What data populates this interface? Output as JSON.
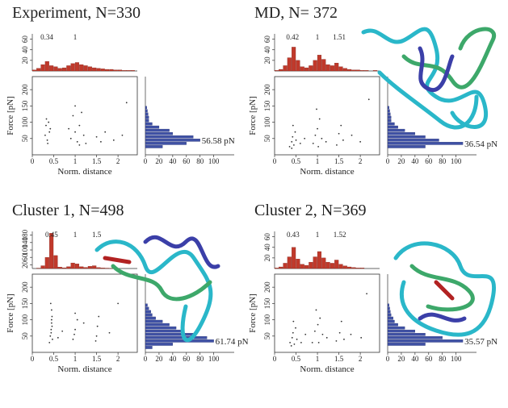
{
  "chart_data": [
    {
      "type": "scatter",
      "title": "Experiment, N=330",
      "x_label": "Norm. distance",
      "y_label": "Force [pN]",
      "xlim": [
        0,
        2.45
      ],
      "ylim": [
        0,
        240
      ],
      "xticks": [
        0,
        0.5,
        1,
        1.5,
        2
      ],
      "yticks": [
        50,
        100,
        150,
        200
      ],
      "color": "#333333",
      "x": [
        0.3,
        0.32,
        0.35,
        0.38,
        0.4,
        0.33,
        0.36,
        0.42,
        0.9,
        0.95,
        1.0,
        1.05,
        1.1,
        1.15,
        1.2,
        1.25,
        1.0,
        1.1,
        0.85,
        1.5,
        1.6,
        1.7,
        1.9,
        2.1,
        2.2
      ],
      "y": [
        60,
        90,
        45,
        100,
        70,
        110,
        35,
        80,
        50,
        120,
        70,
        40,
        90,
        130,
        60,
        35,
        150,
        30,
        80,
        55,
        40,
        70,
        45,
        60,
        160
      ],
      "top_histogram": {
        "type": "histogram",
        "color": "#c0392b",
        "ylim": [
          0,
          70
        ],
        "yticks": [
          20,
          40,
          60
        ],
        "bins": [
          0,
          0.1,
          0.2,
          0.3,
          0.4,
          0.5,
          0.6,
          0.7,
          0.8,
          0.9,
          1.0,
          1.1,
          1.2,
          1.3,
          1.4,
          1.5,
          1.6,
          1.7,
          1.8,
          1.9,
          2.0,
          2.1,
          2.2,
          2.3,
          2.4
        ],
        "counts": [
          2,
          5,
          12,
          18,
          10,
          8,
          5,
          6,
          10,
          14,
          16,
          12,
          10,
          8,
          6,
          5,
          4,
          3,
          3,
          2,
          2,
          1,
          1,
          1
        ],
        "annotations": [
          0.34,
          1
        ]
      },
      "side_histogram": {
        "type": "histogram",
        "color": "#3f51a5",
        "xlim": [
          0,
          130
        ],
        "xticks": [
          0,
          20,
          40,
          60,
          80,
          100
        ],
        "bins": [
          0,
          10,
          20,
          30,
          40,
          50,
          60,
          70,
          80,
          90,
          100,
          110,
          120,
          130,
          140,
          150
        ],
        "counts": [
          0,
          0,
          25,
          60,
          80,
          70,
          40,
          35,
          20,
          10,
          5,
          5,
          4,
          3,
          2
        ],
        "peak_label": "56.58 pN"
      }
    },
    {
      "type": "scatter",
      "title": "MD, N= 372",
      "x_label": "Norm. distance",
      "y_label": "Force [pN]",
      "xlim": [
        0,
        2.45
      ],
      "ylim": [
        0,
        240
      ],
      "xticks": [
        0,
        0.5,
        1,
        1.5,
        2
      ],
      "yticks": [
        50,
        100,
        150,
        200
      ],
      "color": "#333333",
      "x": [
        0.35,
        0.4,
        0.42,
        0.45,
        0.48,
        0.4,
        0.43,
        0.5,
        0.9,
        0.95,
        1.0,
        1.02,
        1.05,
        1.1,
        0.98,
        1.2,
        1.45,
        1.5,
        1.55,
        1.6,
        1.8,
        2.0,
        2.2,
        0.6,
        0.7
      ],
      "y": [
        25,
        40,
        55,
        30,
        70,
        20,
        90,
        45,
        35,
        60,
        80,
        25,
        110,
        50,
        140,
        40,
        30,
        65,
        90,
        45,
        60,
        40,
        170,
        35,
        50
      ],
      "top_histogram": {
        "type": "histogram",
        "color": "#c0392b",
        "ylim": [
          0,
          70
        ],
        "yticks": [
          20,
          40,
          60
        ],
        "bins": [
          0,
          0.1,
          0.2,
          0.3,
          0.4,
          0.5,
          0.6,
          0.7,
          0.8,
          0.9,
          1.0,
          1.1,
          1.2,
          1.3,
          1.4,
          1.5,
          1.6,
          1.7,
          1.8,
          1.9,
          2.0,
          2.1,
          2.2,
          2.3,
          2.4
        ],
        "counts": [
          1,
          3,
          10,
          25,
          45,
          20,
          8,
          6,
          10,
          20,
          30,
          22,
          12,
          10,
          15,
          8,
          5,
          3,
          2,
          2,
          1,
          1,
          0,
          1
        ],
        "annotations": [
          0.42,
          1,
          1.51
        ]
      },
      "side_histogram": {
        "type": "histogram",
        "color": "#3f51a5",
        "xlim": [
          0,
          130
        ],
        "xticks": [
          0,
          20,
          40,
          60,
          80,
          100
        ],
        "bins": [
          0,
          10,
          20,
          30,
          40,
          50,
          60,
          70,
          80,
          90,
          100,
          110,
          120,
          130,
          140,
          150
        ],
        "counts": [
          0,
          0,
          55,
          110,
          75,
          55,
          40,
          25,
          15,
          10,
          5,
          5,
          4,
          3,
          2
        ],
        "peak_label": "36.54 pN"
      }
    },
    {
      "type": "scatter",
      "title": "Cluster 1, N=498",
      "x_label": "Norm. distance",
      "y_label": "Force [pN]",
      "xlim": [
        0,
        2.45
      ],
      "ylim": [
        0,
        240
      ],
      "xticks": [
        0,
        0.5,
        1,
        1.5,
        2
      ],
      "yticks": [
        50,
        100,
        150,
        200
      ],
      "color": "#333333",
      "x": [
        0.4,
        0.42,
        0.44,
        0.45,
        0.46,
        0.45,
        0.43,
        0.47,
        0.44,
        0.46,
        0.45,
        0.95,
        1.0,
        1.05,
        1.0,
        0.98,
        1.5,
        1.52,
        1.55,
        1.48,
        1.8,
        2.0,
        0.6,
        0.7,
        1.2
      ],
      "y": [
        30,
        50,
        70,
        90,
        110,
        130,
        150,
        40,
        60,
        80,
        100,
        40,
        70,
        100,
        120,
        55,
        50,
        80,
        110,
        35,
        60,
        150,
        45,
        65,
        90
      ],
      "top_histogram": {
        "type": "histogram",
        "color": "#c0392b",
        "ylim": [
          0,
          200
        ],
        "yticks": [
          20,
          60,
          100,
          140,
          180
        ],
        "bins": [
          0,
          0.1,
          0.2,
          0.3,
          0.4,
          0.5,
          0.6,
          0.7,
          0.8,
          0.9,
          1.0,
          1.1,
          1.2,
          1.3,
          1.4,
          1.5,
          1.6,
          1.7,
          1.8,
          1.9,
          2.0,
          2.1,
          2.2,
          2.3,
          2.4
        ],
        "counts": [
          0,
          2,
          15,
          60,
          190,
          70,
          8,
          4,
          10,
          30,
          25,
          10,
          6,
          12,
          15,
          5,
          3,
          2,
          1,
          1,
          0,
          0,
          0,
          0
        ],
        "annotations": [
          0.45,
          1,
          1.5
        ]
      },
      "side_histogram": {
        "type": "histogram",
        "color": "#3f51a5",
        "xlim": [
          0,
          130
        ],
        "xticks": [
          0,
          20,
          40,
          60,
          80,
          100
        ],
        "bins": [
          0,
          10,
          20,
          30,
          40,
          50,
          60,
          70,
          80,
          90,
          100,
          110,
          120,
          130,
          140,
          150
        ],
        "counts": [
          0,
          10,
          40,
          100,
          90,
          70,
          55,
          45,
          35,
          25,
          15,
          10,
          8,
          5,
          3
        ],
        "peak_label": "61.74 pN"
      }
    },
    {
      "type": "scatter",
      "title": "Cluster 2, N=369",
      "x_label": "Norm. distance",
      "y_label": "Force [pN]",
      "xlim": [
        0,
        2.45
      ],
      "ylim": [
        0,
        240
      ],
      "xticks": [
        0,
        0.5,
        1,
        1.5,
        2
      ],
      "yticks": [
        50,
        100,
        150,
        200
      ],
      "color": "#333333",
      "x": [
        0.36,
        0.41,
        0.43,
        0.46,
        0.49,
        0.39,
        0.44,
        0.52,
        0.88,
        0.94,
        1.01,
        1.03,
        1.06,
        1.12,
        0.97,
        1.22,
        1.44,
        1.52,
        1.56,
        1.62,
        1.78,
        2.02,
        2.15,
        0.62,
        0.72
      ],
      "y": [
        30,
        45,
        60,
        25,
        75,
        20,
        95,
        40,
        30,
        65,
        85,
        30,
        105,
        55,
        130,
        45,
        35,
        60,
        95,
        40,
        55,
        45,
        180,
        30,
        55
      ],
      "top_histogram": {
        "type": "histogram",
        "color": "#c0392b",
        "ylim": [
          0,
          70
        ],
        "yticks": [
          20,
          40,
          60
        ],
        "bins": [
          0,
          0.1,
          0.2,
          0.3,
          0.4,
          0.5,
          0.6,
          0.7,
          0.8,
          0.9,
          1.0,
          1.1,
          1.2,
          1.3,
          1.4,
          1.5,
          1.6,
          1.7,
          1.8,
          1.9,
          2.0,
          2.1,
          2.2,
          2.3,
          2.4
        ],
        "counts": [
          1,
          3,
          10,
          22,
          40,
          18,
          8,
          6,
          12,
          22,
          32,
          20,
          12,
          10,
          16,
          8,
          5,
          3,
          2,
          1,
          1,
          0,
          0,
          0
        ],
        "annotations": [
          0.43,
          1,
          1.52
        ]
      },
      "side_histogram": {
        "type": "histogram",
        "color": "#3f51a5",
        "xlim": [
          0,
          130
        ],
        "xticks": [
          0,
          20,
          40,
          60,
          80,
          100
        ],
        "bins": [
          0,
          10,
          20,
          30,
          40,
          50,
          60,
          70,
          80,
          90,
          100,
          110,
          120,
          130,
          140,
          150
        ],
        "counts": [
          0,
          0,
          55,
          110,
          80,
          55,
          40,
          25,
          15,
          10,
          8,
          5,
          4,
          3,
          2
        ],
        "peak_label": "35.57 pN"
      }
    }
  ]
}
